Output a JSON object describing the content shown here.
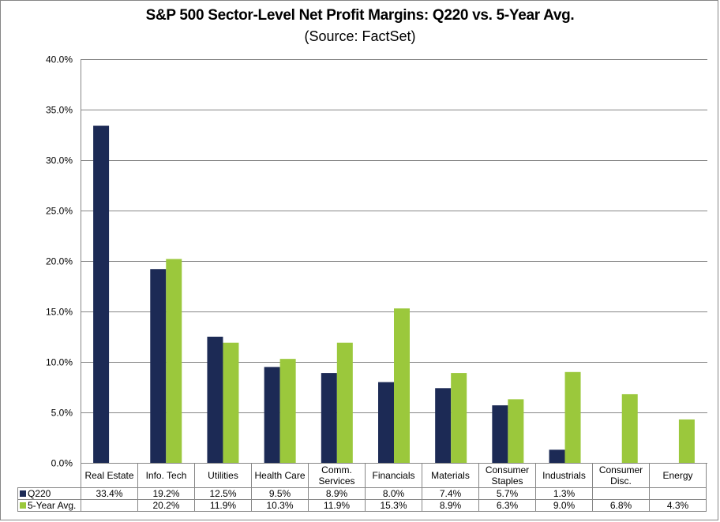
{
  "chart_data": {
    "type": "bar",
    "title": "S&P 500 Sector-Level Net Profit Margins: Q220 vs. 5-Year Avg.",
    "subtitle": "(Source: FactSet)",
    "xlabel": "",
    "ylabel": "",
    "ylim": [
      0,
      40
    ],
    "yticks": [
      "0.0%",
      "5.0%",
      "10.0%",
      "15.0%",
      "20.0%",
      "25.0%",
      "30.0%",
      "35.0%",
      "40.0%"
    ],
    "grid": true,
    "legend": "data-table",
    "categories": [
      "Real Estate",
      "Info. Tech",
      "Utilities",
      "Health Care",
      "Comm. Services",
      "Financials",
      "Materials",
      "Consumer Staples",
      "Industrials",
      "Consumer Disc.",
      "Energy"
    ],
    "category_lines": [
      [
        "Real Estate"
      ],
      [
        "Info. Tech"
      ],
      [
        "Utilities"
      ],
      [
        "Health Care"
      ],
      [
        "Comm.",
        "Services"
      ],
      [
        "Financials"
      ],
      [
        "Materials"
      ],
      [
        "Consumer",
        "Staples"
      ],
      [
        "Industrials"
      ],
      [
        "Consumer",
        "Disc."
      ],
      [
        "Energy"
      ]
    ],
    "series": [
      {
        "name": "Q220",
        "color": "#1c2a55",
        "values": [
          33.4,
          19.2,
          12.5,
          9.5,
          8.9,
          8.0,
          7.4,
          5.7,
          1.3,
          null,
          null
        ],
        "labels": [
          "33.4%",
          "19.2%",
          "12.5%",
          "9.5%",
          "8.9%",
          "8.0%",
          "7.4%",
          "5.7%",
          "1.3%",
          "",
          ""
        ]
      },
      {
        "name": "5-Year Avg.",
        "color": "#9bc83c",
        "values": [
          null,
          20.2,
          11.9,
          10.3,
          11.9,
          15.3,
          8.9,
          6.3,
          9.0,
          6.8,
          4.3
        ],
        "labels": [
          "",
          "20.2%",
          "11.9%",
          "10.3%",
          "11.9%",
          "15.3%",
          "8.9%",
          "6.3%",
          "9.0%",
          "6.8%",
          "4.3%"
        ]
      }
    ]
  }
}
